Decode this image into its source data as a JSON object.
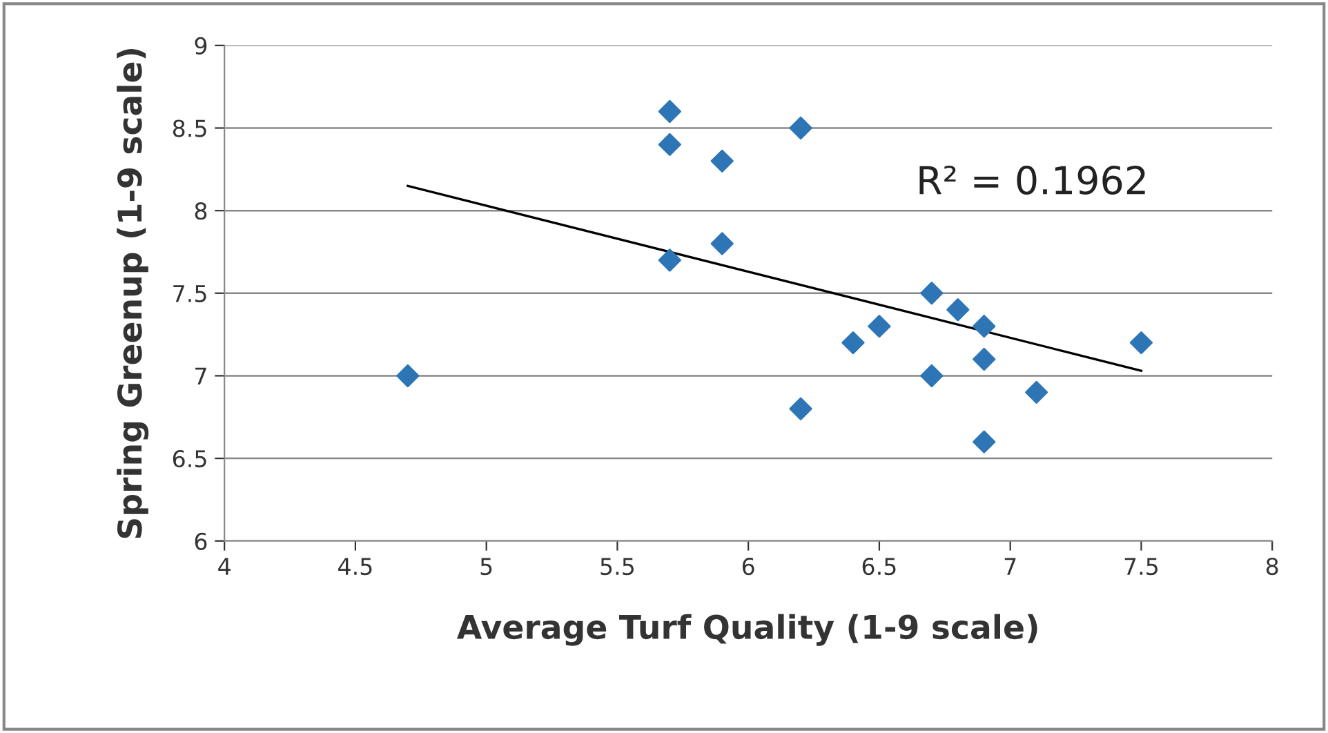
{
  "chart_data": {
    "type": "scatter",
    "xlabel": "Average Turf Quality (1-9 scale)",
    "ylabel": "Spring Greenup (1-9 scale)",
    "annotations": [
      "R² = 0.1962"
    ],
    "series": [
      {
        "color": "#2e75b6",
        "marker": "diamond",
        "x": [
          4.7,
          5.7,
          5.7,
          5.7,
          5.9,
          5.9,
          6.2,
          6.2,
          6.4,
          6.5,
          6.7,
          6.7,
          6.8,
          6.9,
          6.9,
          6.9,
          7.1,
          7.5
        ],
        "values": [
          7.0,
          8.6,
          8.4,
          7.7,
          8.3,
          7.8,
          8.5,
          6.8,
          7.2,
          7.3,
          7.5,
          7.0,
          7.4,
          7.3,
          7.1,
          6.6,
          6.9,
          7.2
        ]
      },
      {
        "type": "line",
        "color": "#000000",
        "marker": "none",
        "line_style": "solid",
        "x": [
          4.7,
          7.5
        ],
        "values": [
          8.15,
          7.03
        ]
      }
    ],
    "xlim": [
      4,
      8
    ],
    "xticks": [
      4,
      4.5,
      5,
      5.5,
      6,
      6.5,
      7,
      7.5,
      8
    ],
    "ylim": [
      6,
      9
    ],
    "yticks": [
      6,
      6.5,
      7,
      7.5,
      8,
      8.5,
      9
    ],
    "grid": "y",
    "legend": false
  }
}
